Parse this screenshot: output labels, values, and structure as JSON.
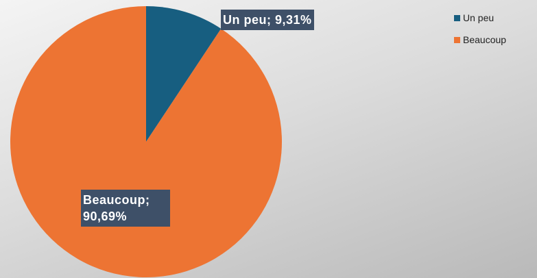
{
  "chart_data": {
    "type": "pie",
    "categories": [
      "Un peu",
      "Beaucoup"
    ],
    "values": [
      9.31,
      90.69
    ],
    "value_labels": [
      "Un peu; 9,31%",
      "Beaucoup; 90,69%"
    ],
    "colors": [
      "#175e80",
      "#ed7433"
    ],
    "legend": "top-right"
  }
}
